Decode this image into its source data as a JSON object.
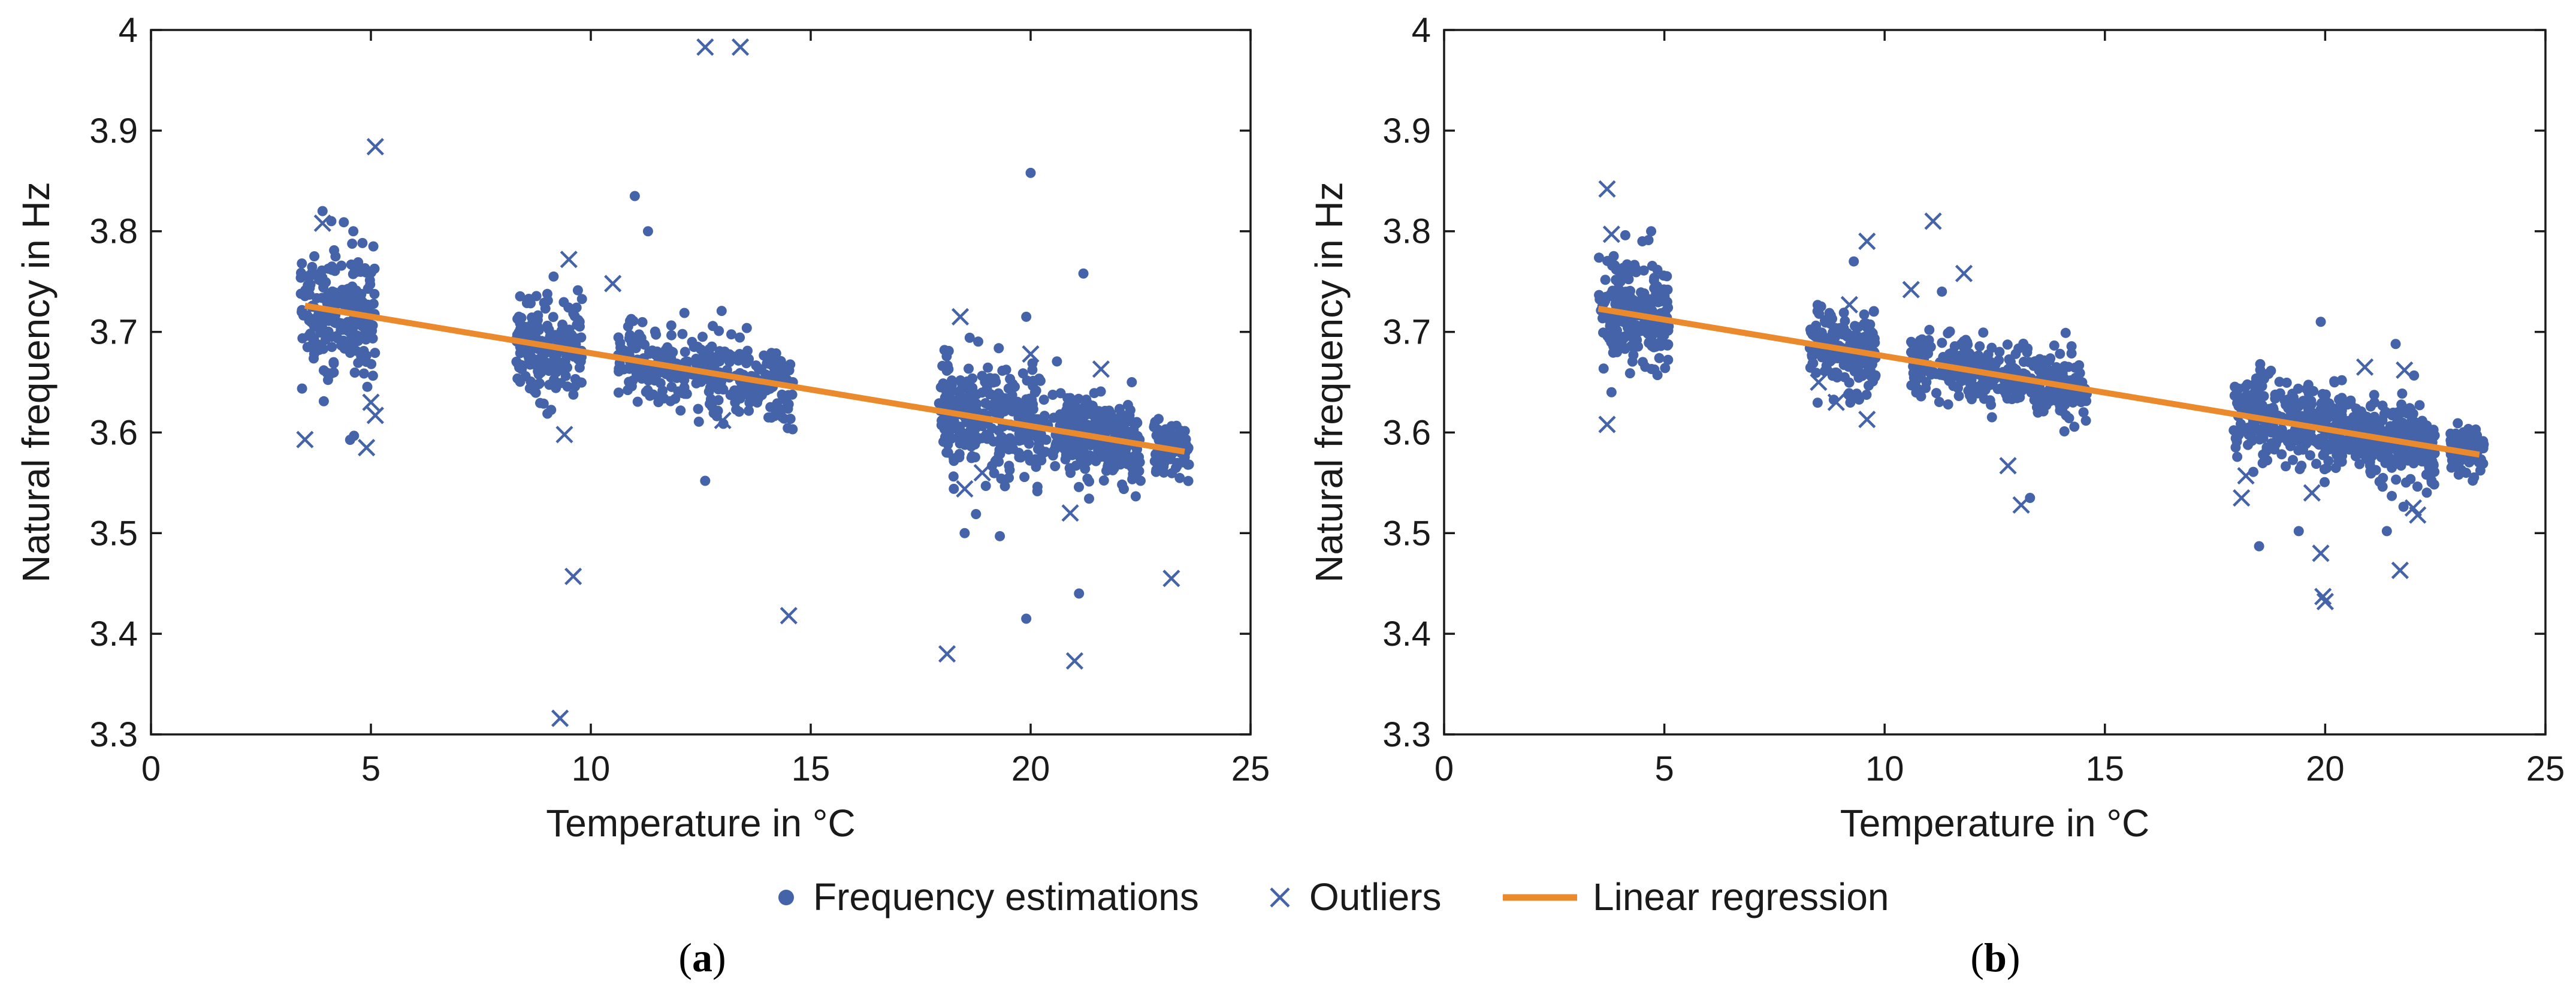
{
  "chart_data": [
    {
      "type": "scatter",
      "panel": "a",
      "caption": "a",
      "xlabel": "Temperature in °C",
      "ylabel": "Natural frequency in Hz",
      "xlim": [
        0,
        25
      ],
      "ylim": [
        3.3,
        4.0
      ],
      "xticks": [
        0,
        5,
        10,
        15,
        20,
        25
      ],
      "xtick_labels": [
        "0",
        "5",
        "10",
        "15",
        "20",
        "25"
      ],
      "yticks": [
        3.3,
        3.4,
        3.5,
        3.6,
        3.7,
        3.8,
        3.9,
        4.0
      ],
      "ytick_labels": [
        "3.3",
        "3.4",
        "3.5",
        "3.6",
        "3.7",
        "3.8",
        "3.9",
        "4"
      ],
      "grid": false,
      "regression": {
        "x": [
          3.5,
          23.5
        ],
        "y": [
          3.726,
          3.581
        ]
      },
      "clusters": [
        {
          "x_min": 3.4,
          "x_max": 5.1,
          "count": 240,
          "sd": 0.03
        },
        {
          "x_min": 8.3,
          "x_max": 9.8,
          "count": 200,
          "sd": 0.025
        },
        {
          "x_min": 10.6,
          "x_max": 14.6,
          "count": 340,
          "sd": 0.02
        },
        {
          "x_min": 17.9,
          "x_max": 20.4,
          "count": 300,
          "sd": 0.025
        },
        {
          "x_min": 20.5,
          "x_max": 22.5,
          "count": 280,
          "sd": 0.02
        },
        {
          "x_min": 22.8,
          "x_max": 23.6,
          "count": 80,
          "sd": 0.015
        }
      ],
      "extra_points": [
        {
          "x": 3.9,
          "y": 3.82
        },
        {
          "x": 4.1,
          "y": 3.81
        },
        {
          "x": 4.6,
          "y": 3.8
        },
        {
          "x": 11.0,
          "y": 3.835
        },
        {
          "x": 11.3,
          "y": 3.8
        },
        {
          "x": 12.6,
          "y": 3.552
        },
        {
          "x": 20.0,
          "y": 3.858
        },
        {
          "x": 19.9,
          "y": 3.715
        },
        {
          "x": 21.2,
          "y": 3.758
        },
        {
          "x": 19.9,
          "y": 3.415
        },
        {
          "x": 21.1,
          "y": 3.44
        },
        {
          "x": 19.3,
          "y": 3.497
        },
        {
          "x": 18.5,
          "y": 3.5
        },
        {
          "x": 22.3,
          "y": 3.65
        }
      ],
      "outliers": [
        {
          "x": 3.5,
          "y": 3.593
        },
        {
          "x": 3.9,
          "y": 3.808
        },
        {
          "x": 4.9,
          "y": 3.585
        },
        {
          "x": 5.1,
          "y": 3.884
        },
        {
          "x": 5.1,
          "y": 3.617
        },
        {
          "x": 5.0,
          "y": 3.63
        },
        {
          "x": 9.3,
          "y": 3.316
        },
        {
          "x": 9.4,
          "y": 3.598
        },
        {
          "x": 9.6,
          "y": 3.457
        },
        {
          "x": 9.5,
          "y": 3.772
        },
        {
          "x": 10.5,
          "y": 3.748
        },
        {
          "x": 12.6,
          "y": 3.983
        },
        {
          "x": 13.4,
          "y": 3.983
        },
        {
          "x": 14.5,
          "y": 3.418
        },
        {
          "x": 13.0,
          "y": 3.612
        },
        {
          "x": 18.1,
          "y": 3.38
        },
        {
          "x": 18.4,
          "y": 3.715
        },
        {
          "x": 18.5,
          "y": 3.544
        },
        {
          "x": 18.9,
          "y": 3.56
        },
        {
          "x": 20.0,
          "y": 3.678
        },
        {
          "x": 20.9,
          "y": 3.52
        },
        {
          "x": 21.0,
          "y": 3.373
        },
        {
          "x": 21.6,
          "y": 3.663
        },
        {
          "x": 23.2,
          "y": 3.455
        }
      ]
    },
    {
      "type": "scatter",
      "panel": "b",
      "caption": "b",
      "xlabel": "Temperature in °C",
      "ylabel": "Natural frequency in Hz",
      "xlim": [
        0,
        25
      ],
      "ylim": [
        3.3,
        4.0
      ],
      "xticks": [
        0,
        5,
        10,
        15,
        20,
        25
      ],
      "xtick_labels": [
        "0",
        "5",
        "10",
        "15",
        "20",
        "25"
      ],
      "yticks": [
        3.3,
        3.4,
        3.5,
        3.6,
        3.7,
        3.8,
        3.9,
        4.0
      ],
      "ytick_labels": [
        "3.3",
        "3.4",
        "3.5",
        "3.6",
        "3.7",
        "3.8",
        "3.9",
        "4"
      ],
      "grid": false,
      "regression": {
        "x": [
          3.5,
          23.5
        ],
        "y": [
          3.723,
          3.578
        ]
      },
      "clusters": [
        {
          "x_min": 3.5,
          "x_max": 5.1,
          "count": 240,
          "sd": 0.025
        },
        {
          "x_min": 8.3,
          "x_max": 9.8,
          "count": 200,
          "sd": 0.02
        },
        {
          "x_min": 10.6,
          "x_max": 14.6,
          "count": 340,
          "sd": 0.015
        },
        {
          "x_min": 17.9,
          "x_max": 20.4,
          "count": 300,
          "sd": 0.02
        },
        {
          "x_min": 20.5,
          "x_max": 22.5,
          "count": 280,
          "sd": 0.018
        },
        {
          "x_min": 22.8,
          "x_max": 23.6,
          "count": 80,
          "sd": 0.012
        }
      ],
      "extra_points": [
        {
          "x": 4.7,
          "y": 3.8
        },
        {
          "x": 4.5,
          "y": 3.79
        },
        {
          "x": 3.8,
          "y": 3.64
        },
        {
          "x": 9.3,
          "y": 3.77
        },
        {
          "x": 11.3,
          "y": 3.74
        },
        {
          "x": 13.3,
          "y": 3.535
        },
        {
          "x": 19.9,
          "y": 3.71
        },
        {
          "x": 21.6,
          "y": 3.688
        },
        {
          "x": 18.5,
          "y": 3.487
        },
        {
          "x": 19.4,
          "y": 3.502
        },
        {
          "x": 21.4,
          "y": 3.502
        }
      ],
      "outliers": [
        {
          "x": 3.7,
          "y": 3.608
        },
        {
          "x": 3.7,
          "y": 3.842
        },
        {
          "x": 3.8,
          "y": 3.797
        },
        {
          "x": 8.5,
          "y": 3.65
        },
        {
          "x": 8.9,
          "y": 3.63
        },
        {
          "x": 9.2,
          "y": 3.727
        },
        {
          "x": 9.6,
          "y": 3.79
        },
        {
          "x": 9.6,
          "y": 3.613
        },
        {
          "x": 10.6,
          "y": 3.742
        },
        {
          "x": 11.1,
          "y": 3.81
        },
        {
          "x": 11.8,
          "y": 3.758
        },
        {
          "x": 12.8,
          "y": 3.567
        },
        {
          "x": 13.1,
          "y": 3.528
        },
        {
          "x": 18.1,
          "y": 3.535
        },
        {
          "x": 18.2,
          "y": 3.557
        },
        {
          "x": 19.7,
          "y": 3.54
        },
        {
          "x": 19.9,
          "y": 3.48
        },
        {
          "x": 19.95,
          "y": 3.437
        },
        {
          "x": 20.0,
          "y": 3.432
        },
        {
          "x": 20.9,
          "y": 3.665
        },
        {
          "x": 21.8,
          "y": 3.662
        },
        {
          "x": 21.7,
          "y": 3.463
        },
        {
          "x": 22.0,
          "y": 3.525
        },
        {
          "x": 22.1,
          "y": 3.518
        }
      ]
    }
  ],
  "legend": {
    "items": [
      {
        "label": "Frequency estimations",
        "marker": "dot"
      },
      {
        "label": "Outliers",
        "marker": "cross"
      },
      {
        "label": "Linear regression",
        "marker": "line"
      }
    ]
  },
  "colors": {
    "points": "#4563a8",
    "regression": "#ea8a2c",
    "axis": "#1a1a1a"
  }
}
